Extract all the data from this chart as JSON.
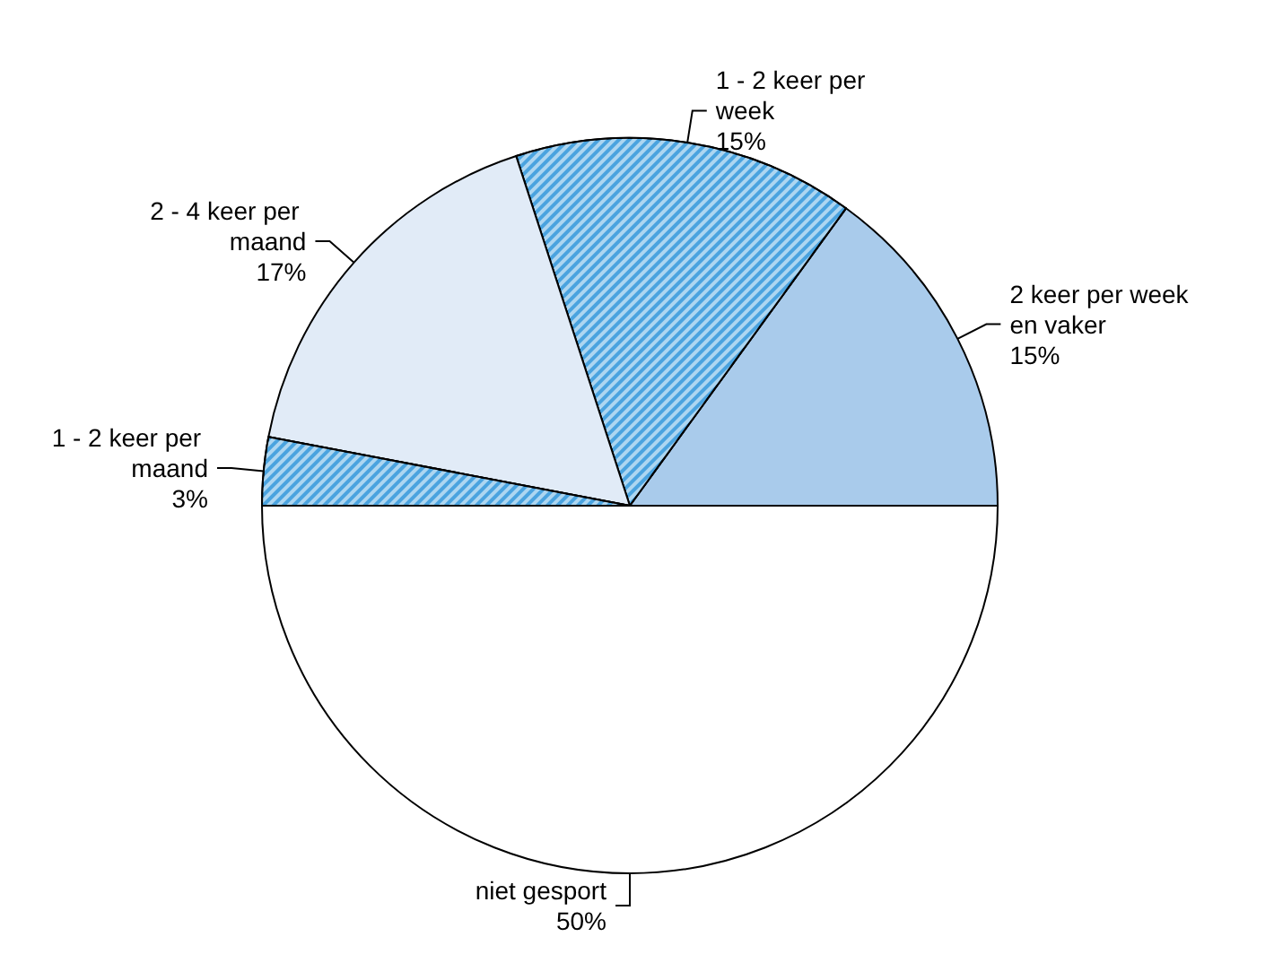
{
  "chart_data": {
    "type": "pie",
    "categories": [
      "2 keer per week en vaker",
      "1 - 2 keer per week",
      "2 - 4 keer per maand",
      "1 - 2 keer per maand",
      "niet gesport"
    ],
    "values": [
      15,
      15,
      17,
      3,
      50
    ],
    "colors": [
      "#a9cbeb",
      "#4aa3df",
      "#e1ebf7",
      "#4aa3df",
      "#ffffff"
    ],
    "value_labels": [
      "15%",
      "15%",
      "17%",
      "3%",
      "50%"
    ]
  }
}
